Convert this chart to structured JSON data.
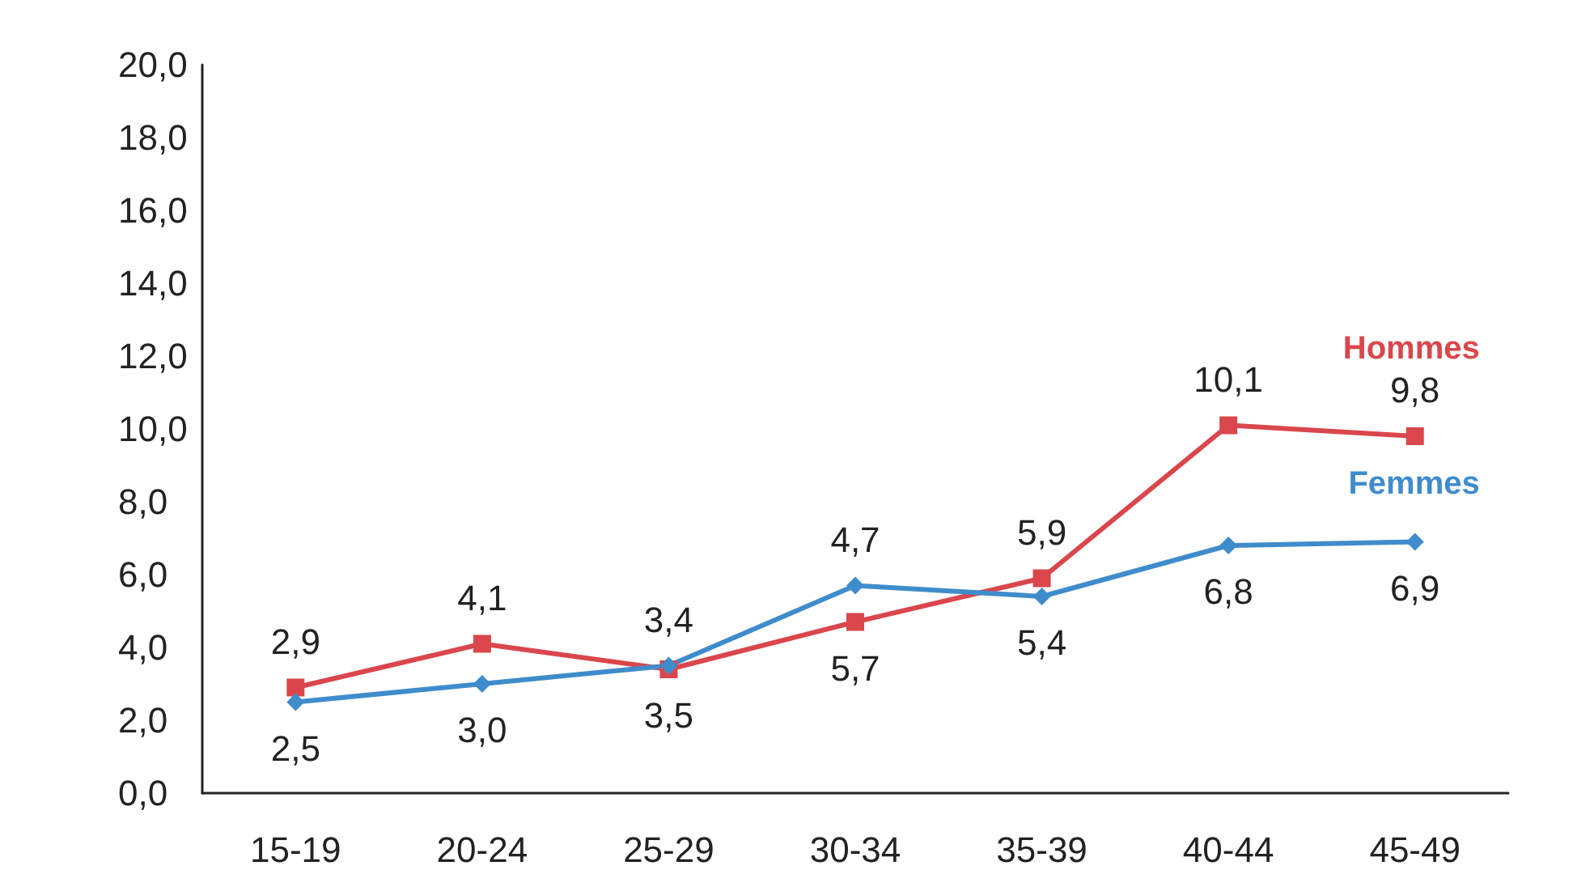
{
  "chart_data": {
    "type": "line",
    "categories": [
      "15-19",
      "20-24",
      "25-29",
      "30-34",
      "35-39",
      "40-44",
      "45-49"
    ],
    "series": [
      {
        "name": "Hommes",
        "color": "#d9474c",
        "marker": "square",
        "values": [
          2.9,
          4.1,
          3.4,
          4.7,
          5.9,
          10.1,
          9.8
        ],
        "value_labels": [
          "2,9",
          "4,1",
          "3,4",
          "4,7",
          "5,9",
          "10,1",
          "9,8"
        ]
      },
      {
        "name": "Femmes",
        "color": "#3f8ccc",
        "marker": "diamond",
        "values": [
          2.5,
          3.0,
          3.5,
          5.7,
          5.4,
          6.8,
          6.9
        ],
        "value_labels": [
          "2,5",
          "3,0",
          "3,5",
          "5,7",
          "5,4",
          "6,8",
          "6,9"
        ]
      }
    ],
    "ylim": [
      0,
      20
    ],
    "yticks": [
      {
        "value": 0,
        "label": "0,0"
      },
      {
        "value": 2,
        "label": "2,0"
      },
      {
        "value": 4,
        "label": "4,0"
      },
      {
        "value": 6,
        "label": "6,0"
      },
      {
        "value": 8,
        "label": "8,0"
      },
      {
        "value": 10,
        "label": "10,0"
      },
      {
        "value": 12,
        "label": "12,0"
      },
      {
        "value": 14,
        "label": "14,0"
      },
      {
        "value": 16,
        "label": "16,0"
      },
      {
        "value": 18,
        "label": "18,0"
      },
      {
        "value": 20,
        "label": "20,0"
      }
    ],
    "grid": false,
    "legend": false
  }
}
